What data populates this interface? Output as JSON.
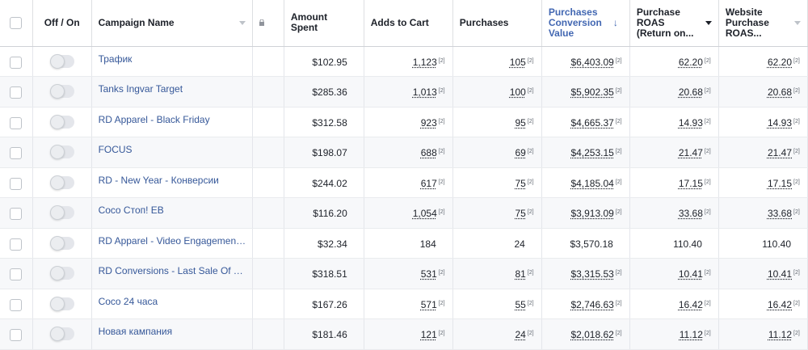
{
  "columns": {
    "toggle": "Off / On",
    "campaign_name": "Campaign Name",
    "amount_spent": [
      "Amount",
      "Spent"
    ],
    "adds_to_cart": "Adds to Cart",
    "purchases": "Purchases",
    "purchases_conversion_value": [
      "Purchases",
      "Conversion",
      "Value"
    ],
    "purchase_roas": [
      "Purchase",
      "ROAS",
      "(Return on..."
    ],
    "website_purchase_roas": [
      "Website",
      "Purchase",
      "ROAS..."
    ]
  },
  "sorted_column": "purchases_conversion_value",
  "sort_direction": "descending",
  "accent_color": "#4267b2",
  "link_color": "#365899",
  "footnote_marker": "[2]",
  "rows": [
    {
      "name": "Трафик",
      "spent": "$102.95",
      "adds": "1,123",
      "purchases": "105",
      "value": "$6,403.09",
      "roas": "62.20",
      "web_roas": "62.20",
      "footnotes": true
    },
    {
      "name": "Tanks Ingvar Target",
      "spent": "$285.36",
      "adds": "1,013",
      "purchases": "100",
      "value": "$5,902.35",
      "roas": "20.68",
      "web_roas": "20.68",
      "footnotes": true
    },
    {
      "name": "RD Apparel - Black Friday",
      "spent": "$312.58",
      "adds": "923",
      "purchases": "95",
      "value": "$4,665.37",
      "roas": "14.93",
      "web_roas": "14.93",
      "footnotes": true
    },
    {
      "name": "FOCUS",
      "spent": "$198.07",
      "adds": "688",
      "purchases": "69",
      "value": "$4,253.15",
      "roas": "21.47",
      "web_roas": "21.47",
      "footnotes": true
    },
    {
      "name": "RD - New Year - Конверсии",
      "spent": "$244.02",
      "adds": "617",
      "purchases": "75",
      "value": "$4,185.04",
      "roas": "17.15",
      "web_roas": "17.15",
      "footnotes": true
    },
    {
      "name": "Coco Стоп! EB",
      "spent": "$116.20",
      "adds": "1,054",
      "purchases": "75",
      "value": "$3,913.09",
      "roas": "33.68",
      "web_roas": "33.68",
      "footnotes": true
    },
    {
      "name": "RD Apparel - Video Engagement ...",
      "spent": "$32.34",
      "adds": "184",
      "purchases": "24",
      "value": "$3,570.18",
      "roas": "110.40",
      "web_roas": "110.40",
      "footnotes": false
    },
    {
      "name": "RD Conversions - Last Sale Of Th...",
      "spent": "$318.51",
      "adds": "531",
      "purchases": "81",
      "value": "$3,315.53",
      "roas": "10.41",
      "web_roas": "10.41",
      "footnotes": true
    },
    {
      "name": "Coco 24 часа",
      "spent": "$167.26",
      "adds": "571",
      "purchases": "55",
      "value": "$2,746.63",
      "roas": "16.42",
      "web_roas": "16.42",
      "footnotes": true
    },
    {
      "name": "Новая кампания",
      "spent": "$181.46",
      "adds": "121",
      "purchases": "24",
      "value": "$2,018.62",
      "roas": "11.12",
      "web_roas": "11.12",
      "footnotes": true
    }
  ]
}
